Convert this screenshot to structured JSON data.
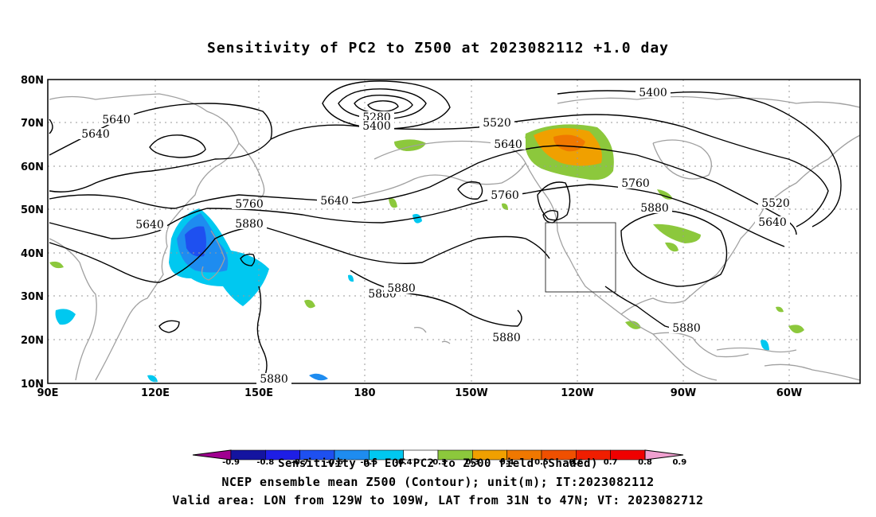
{
  "title": "Sensitivity of PC2 to Z500 at 2023082112 +1.0 day",
  "lat_labels": [
    "80N",
    "70N",
    "60N",
    "50N",
    "40N",
    "30N",
    "20N",
    "10N"
  ],
  "lon_labels": [
    "90E",
    "120E",
    "150E",
    "180",
    "150W",
    "120W",
    "90W",
    "60W"
  ],
  "contour_labels": [
    {
      "text": "5640"
    },
    {
      "text": "5640"
    },
    {
      "text": "5640"
    },
    {
      "text": "5760"
    },
    {
      "text": "5880"
    },
    {
      "text": "5640"
    },
    {
      "text": "5280"
    },
    {
      "text": "5400"
    },
    {
      "text": "5520"
    },
    {
      "text": "5640"
    },
    {
      "text": "5760"
    },
    {
      "text": "5400"
    },
    {
      "text": "5760"
    },
    {
      "text": "5880"
    },
    {
      "text": "5520"
    },
    {
      "text": "5640"
    },
    {
      "text": "5880"
    },
    {
      "text": "5880"
    },
    {
      "text": "5880"
    },
    {
      "text": "5880"
    },
    {
      "text": "5880"
    }
  ],
  "colorbar": {
    "labels": [
      "-0.9",
      "-0.8",
      "-0.7",
      "-0.6",
      "-0.5",
      "-0.4",
      "-0.3",
      "0.3",
      "0.4",
      "0.5",
      "0.6",
      "0.7",
      "0.8",
      "0.9"
    ],
    "colors": [
      "#a00090",
      "#1414a0",
      "#1e1ee6",
      "#1e50f0",
      "#1e8cf0",
      "#00c8f0",
      "#ffffff",
      "#8cc83c",
      "#f0a000",
      "#f07800",
      "#f05000",
      "#f01e00",
      "#f00000",
      "#f0a0d0"
    ]
  },
  "captions": {
    "line1": "Sensitivity of EOF PC2 to Z500 field (Shaded)",
    "line2": "NCEP ensemble mean Z500 (Contour); unit(m); IT:2023082112",
    "line3": "Valid area: LON from 129W to 109W, LAT from 31N to 47N; VT: 2023082712"
  },
  "shading_colors": {
    "positive_light": "#8cc83c",
    "positive_mid": "#f0a000",
    "positive_strong": "#f07800",
    "negative_light": "#00c8f0",
    "negative_mid": "#1e8cf0",
    "negative_strong": "#1e50f0"
  }
}
